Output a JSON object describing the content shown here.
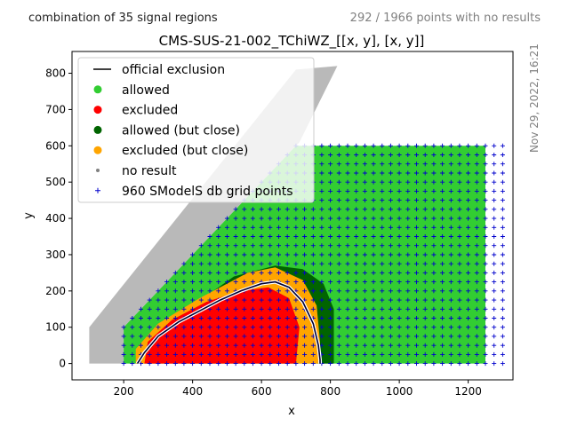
{
  "header": {
    "left_note": "combination of 35 signal regions",
    "right_note": "292 / 1966 points with no results",
    "side_note": "Nov 29, 2022, 16:21"
  },
  "chart_data": {
    "type": "scatter",
    "title": "CMS-SUS-21-002_TChiWZ_[[x, y], [x, y]]",
    "xlabel": "x",
    "ylabel": "y",
    "xlim": [
      50,
      1330
    ],
    "ylim": [
      -45,
      860
    ],
    "xticks": [
      200,
      400,
      600,
      800,
      1000,
      1200
    ],
    "yticks": [
      0,
      100,
      200,
      300,
      400,
      500,
      600,
      700,
      800
    ],
    "grid": false,
    "legend_position": "top-left",
    "legend": [
      {
        "label": "official exclusion",
        "marker": "line",
        "color": "#000000"
      },
      {
        "label": "allowed",
        "marker": "dot",
        "color": "#32cd32"
      },
      {
        "label": "excluded",
        "marker": "dot",
        "color": "#ff0000"
      },
      {
        "label": "allowed (but close)",
        "marker": "dot",
        "color": "#006400"
      },
      {
        "label": "excluded (but close)",
        "marker": "dot",
        "color": "#ffa500"
      },
      {
        "label": "no result",
        "marker": "small-dot",
        "color": "#808080"
      },
      {
        "label": "960 SModelS db grid points",
        "marker": "plus",
        "color": "#0000cc"
      }
    ],
    "colors": {
      "allowed": "#32cd32",
      "excluded": "#ff0000",
      "allowed_close": "#006400",
      "excluded_close": "#ffa500",
      "no_result": "#808080",
      "grid_points": "#0000cc",
      "exclusion_line": "#000000"
    },
    "regions": {
      "allowed_envelope": [
        [
          200,
          0
        ],
        [
          1250,
          0
        ],
        [
          1250,
          600
        ],
        [
          700,
          600
        ],
        [
          200,
          100
        ]
      ],
      "no_result_band": [
        [
          100,
          0
        ],
        [
          200,
          0
        ],
        [
          200,
          100
        ],
        [
          710,
          610
        ],
        [
          820,
          820
        ],
        [
          700,
          810
        ],
        [
          100,
          100
        ]
      ],
      "allowed_close_region": [
        [
          400,
          160
        ],
        [
          520,
          240
        ],
        [
          640,
          270
        ],
        [
          720,
          260
        ],
        [
          780,
          220
        ],
        [
          810,
          150
        ],
        [
          810,
          0
        ],
        [
          760,
          0
        ],
        [
          420,
          100
        ]
      ],
      "excluded_close_region": [
        [
          235,
          0
        ],
        [
          770,
          0
        ],
        [
          770,
          60
        ],
        [
          760,
          160
        ],
        [
          720,
          230
        ],
        [
          640,
          265
        ],
        [
          560,
          250
        ],
        [
          420,
          180
        ],
        [
          300,
          110
        ],
        [
          235,
          40
        ]
      ],
      "excluded_region": [
        [
          260,
          0
        ],
        [
          700,
          0
        ],
        [
          710,
          100
        ],
        [
          680,
          180
        ],
        [
          620,
          210
        ],
        [
          540,
          200
        ],
        [
          440,
          170
        ],
        [
          340,
          120
        ],
        [
          270,
          60
        ]
      ]
    },
    "official_exclusion": {
      "x": [
        240,
        260,
        300,
        360,
        420,
        480,
        540,
        600,
        640,
        680,
        720,
        750,
        765,
        770,
        770
      ],
      "y": [
        0,
        30,
        75,
        115,
        145,
        175,
        200,
        220,
        225,
        210,
        170,
        110,
        50,
        10,
        0
      ]
    },
    "grid_points_range": {
      "x": [
        200,
        1300
      ],
      "y": [
        0,
        600
      ]
    }
  }
}
